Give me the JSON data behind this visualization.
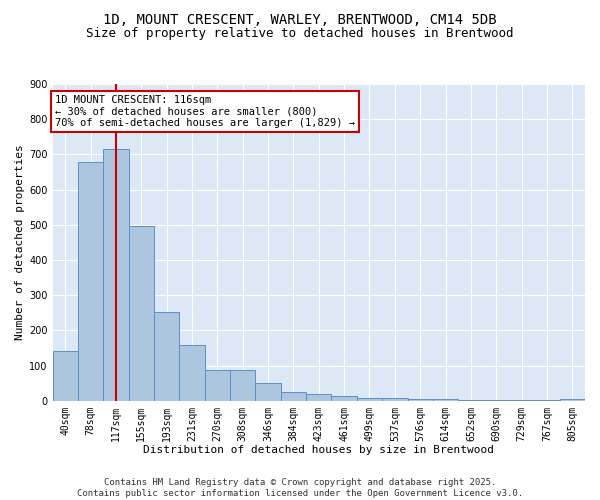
{
  "title": "1D, MOUNT CRESCENT, WARLEY, BRENTWOOD, CM14 5DB",
  "subtitle": "Size of property relative to detached houses in Brentwood",
  "xlabel": "Distribution of detached houses by size in Brentwood",
  "ylabel": "Number of detached properties",
  "bin_labels": [
    "40sqm",
    "78sqm",
    "117sqm",
    "155sqm",
    "193sqm",
    "231sqm",
    "270sqm",
    "308sqm",
    "346sqm",
    "384sqm",
    "423sqm",
    "461sqm",
    "499sqm",
    "537sqm",
    "576sqm",
    "614sqm",
    "652sqm",
    "690sqm",
    "729sqm",
    "767sqm",
    "805sqm"
  ],
  "bar_values": [
    140,
    678,
    715,
    497,
    253,
    157,
    86,
    86,
    51,
    25,
    20,
    12,
    8,
    8,
    6,
    4,
    2,
    2,
    1,
    1,
    6
  ],
  "bar_color": "#adc6e0",
  "bar_edge_color": "#5b8fc9",
  "vline_x": 2,
  "vline_color": "#cc0000",
  "annotation_line1": "1D MOUNT CRESCENT: 116sqm",
  "annotation_line2": "← 30% of detached houses are smaller (800)",
  "annotation_line3": "70% of semi-detached houses are larger (1,829) →",
  "annotation_box_color": "#ffffff",
  "annotation_box_edge_color": "#cc0000",
  "ylim": [
    0,
    900
  ],
  "yticks": [
    0,
    100,
    200,
    300,
    400,
    500,
    600,
    700,
    800,
    900
  ],
  "background_color": "#dce8f5",
  "grid_color": "#ffffff",
  "footer_text": "Contains HM Land Registry data © Crown copyright and database right 2025.\nContains public sector information licensed under the Open Government Licence v3.0.",
  "title_fontsize": 10,
  "subtitle_fontsize": 9,
  "xlabel_fontsize": 8,
  "ylabel_fontsize": 8,
  "tick_fontsize": 7,
  "annotation_fontsize": 7.5,
  "footer_fontsize": 6.5
}
